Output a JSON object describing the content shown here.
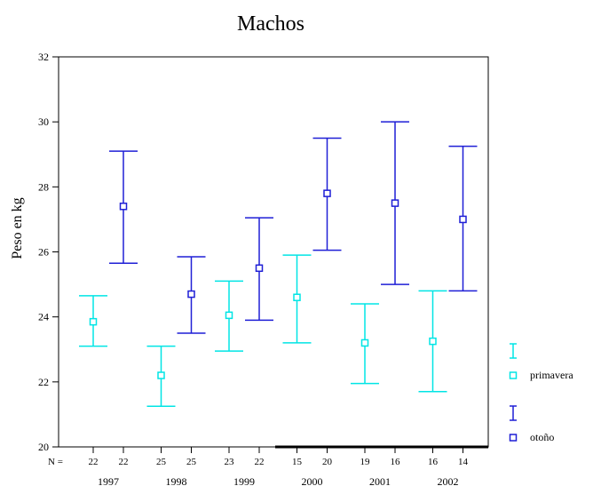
{
  "chart_data": {
    "type": "errorbar",
    "title": "Machos",
    "ylabel": "Peso en kg",
    "ylim": [
      20,
      32
    ],
    "yticks": [
      "20",
      "22",
      "24",
      "26",
      "28",
      "30",
      "32"
    ],
    "n_label": "N =",
    "years": [
      "1997",
      "1998",
      "1999",
      "2000",
      "2001",
      "2002"
    ],
    "series": [
      {
        "name": "primavera",
        "color": "#00e5e5",
        "mean": [
          23.85,
          22.2,
          24.05,
          24.6,
          23.2,
          23.25
        ],
        "low": [
          23.1,
          21.25,
          22.95,
          23.2,
          21.95,
          21.7
        ],
        "high": [
          24.65,
          23.1,
          25.1,
          25.9,
          24.4,
          24.8
        ],
        "n": [
          "22",
          "25",
          "23",
          "15",
          "19",
          "16"
        ]
      },
      {
        "name": "otoño",
        "color": "#1f1fd6",
        "mean": [
          27.4,
          24.7,
          25.5,
          27.8,
          27.5,
          27.0
        ],
        "low": [
          25.65,
          23.5,
          23.9,
          26.05,
          25.0,
          24.8
        ],
        "high": [
          29.1,
          25.85,
          27.05,
          29.5,
          30.0,
          29.25
        ],
        "n": [
          "22",
          "25",
          "22",
          "20",
          "16",
          "14"
        ]
      }
    ],
    "legend": [
      {
        "label": "primavera",
        "icon": "errorbar-square-marker"
      },
      {
        "label": "otoño",
        "icon": "errorbar-square-marker"
      }
    ],
    "legend_position": "right"
  }
}
